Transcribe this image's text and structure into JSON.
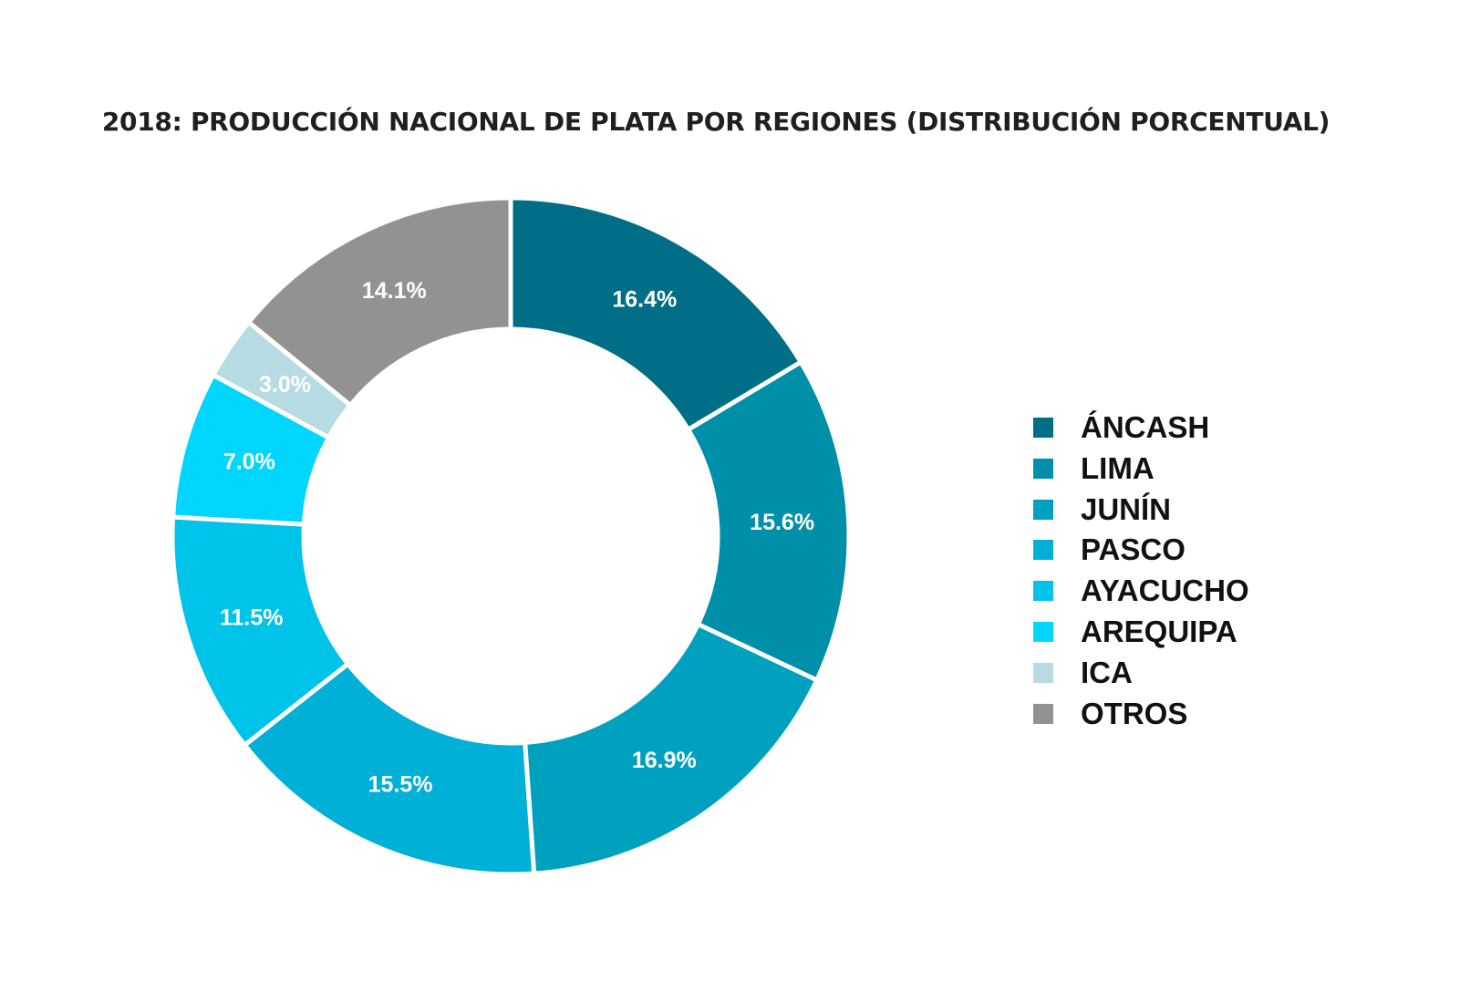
{
  "chart_data": {
    "type": "pie",
    "donut": true,
    "title": "2018: PRODUCCIÓN NACIONAL DE PLATA POR REGIONES (DISTRIBUCIÓN PORCENTUAL)",
    "unit": "%",
    "legend_position": "right",
    "slices": [
      {
        "name": "ÁNCASH",
        "value": 16.4,
        "label": "16.4%",
        "color": "#006e86"
      },
      {
        "name": "LIMA",
        "value": 15.6,
        "label": "15.6%",
        "color": "#008fa9"
      },
      {
        "name": "JUNÍN",
        "value": 16.9,
        "label": "16.9%",
        "color": "#00a0bf"
      },
      {
        "name": "PASCO",
        "value": 15.5,
        "label": "15.5%",
        "color": "#00b0d6"
      },
      {
        "name": "AYACUCHO",
        "value": 11.5,
        "label": "11.5%",
        "color": "#00c3ea"
      },
      {
        "name": "AREQUIPA",
        "value": 7.0,
        "label": "7.0%",
        "color": "#00d6ff"
      },
      {
        "name": "ICA",
        "value": 3.0,
        "label": "3.0%",
        "color": "#b6dbe2"
      },
      {
        "name": "OTROS",
        "value": 14.1,
        "label": "14.1%",
        "color": "#929292"
      }
    ]
  }
}
